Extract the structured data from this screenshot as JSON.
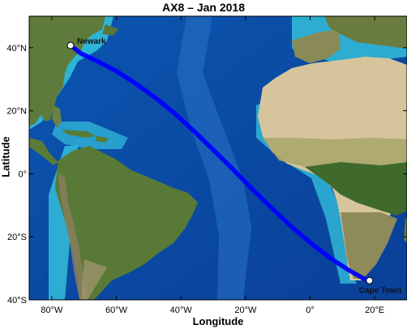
{
  "title": "AX8 – Jan 2018",
  "xlabel": "Longitude",
  "ylabel": "Latitude",
  "map": {
    "lon_range": [
      -87,
      30
    ],
    "lat_range": [
      -40,
      50
    ],
    "lon_ticks": [
      {
        "value": -80,
        "label": "80°W"
      },
      {
        "value": -60,
        "label": "60°W"
      },
      {
        "value": -40,
        "label": "40°W"
      },
      {
        "value": -20,
        "label": "20°W"
      },
      {
        "value": 0,
        "label": "0°"
      },
      {
        "value": 20,
        "label": "20°E"
      }
    ],
    "lat_ticks": [
      {
        "value": 40,
        "label": "40°N"
      },
      {
        "value": 20,
        "label": "20°N"
      },
      {
        "value": 0,
        "label": "0°"
      },
      {
        "value": -20,
        "label": "20°S"
      },
      {
        "value": -40,
        "label": "40°S"
      }
    ],
    "colors": {
      "deep_ocean": "#0b4fa8",
      "shallow_water": "#35c6dc",
      "land_green": "#5e7a3a",
      "desert": "#d4c39a",
      "track": "#0000ff"
    }
  },
  "track": {
    "color": "#0000ff",
    "points": [
      [
        -73.0,
        39.8
      ],
      [
        -71.0,
        38.2
      ],
      [
        -66.0,
        35.8
      ],
      [
        -60.0,
        32.6
      ],
      [
        -54.0,
        28.6
      ],
      [
        -48.0,
        24.2
      ],
      [
        -42.0,
        19.2
      ],
      [
        -36.0,
        13.6
      ],
      [
        -30.0,
        7.6
      ],
      [
        -24.0,
        1.5
      ],
      [
        -18.0,
        -4.8
      ],
      [
        -12.0,
        -10.8
      ],
      [
        -6.0,
        -16.6
      ],
      [
        0.0,
        -21.8
      ],
      [
        6.0,
        -26.6
      ],
      [
        12.0,
        -30.6
      ],
      [
        16.5,
        -33.2
      ],
      [
        18.5,
        -34.0
      ]
    ]
  },
  "ports": [
    {
      "name": "Newark",
      "lon": -74.2,
      "lat": 40.7
    },
    {
      "name": "Cape Town",
      "lon": 18.4,
      "lat": -33.9
    }
  ]
}
